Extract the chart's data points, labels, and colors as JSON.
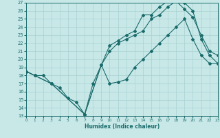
{
  "xlabel": "Humidex (Indice chaleur)",
  "bg_color": "#c8e8e8",
  "grid_color": "#a8d0d0",
  "line_color": "#1a6b6b",
  "xmin": 0,
  "xmax": 23,
  "ymin": 13,
  "ymax": 27,
  "line1_x": [
    0,
    1,
    2,
    3,
    4,
    5,
    6,
    7,
    8,
    9,
    10,
    11,
    12,
    13,
    14,
    15,
    16,
    17,
    18,
    19,
    20,
    21,
    22,
    23
  ],
  "line1_y": [
    18.5,
    18.0,
    18.0,
    17.0,
    16.5,
    15.2,
    14.7,
    13.2,
    17.0,
    19.3,
    17.0,
    17.2,
    17.5,
    19.0,
    20.0,
    21.0,
    22.0,
    23.0,
    24.0,
    25.0,
    22.5,
    20.5,
    19.5,
    19.5
  ],
  "line2_x": [
    0,
    1,
    3,
    7,
    9,
    10,
    11,
    12,
    13,
    14,
    15,
    16,
    17,
    18,
    19,
    20,
    21,
    22,
    23
  ],
  "line2_y": [
    18.5,
    18.0,
    17.0,
    13.2,
    19.3,
    21.7,
    22.3,
    23.0,
    23.5,
    25.5,
    25.5,
    26.5,
    27.2,
    27.2,
    26.2,
    25.2,
    23.0,
    21.0,
    20.5
  ],
  "line3_x": [
    0,
    1,
    3,
    7,
    9,
    10,
    11,
    12,
    13,
    14,
    15,
    16,
    17,
    18,
    19,
    20,
    21,
    22,
    23
  ],
  "line3_y": [
    18.5,
    18.0,
    17.0,
    13.2,
    19.3,
    21.0,
    22.0,
    22.5,
    23.0,
    23.5,
    25.0,
    25.5,
    26.5,
    27.2,
    27.0,
    26.0,
    22.5,
    20.5,
    19.5
  ],
  "yticks": [
    13,
    14,
    15,
    16,
    17,
    18,
    19,
    20,
    21,
    22,
    23,
    24,
    25,
    26,
    27
  ],
  "xticks": [
    0,
    1,
    2,
    3,
    4,
    5,
    6,
    7,
    8,
    9,
    10,
    11,
    12,
    13,
    14,
    15,
    16,
    17,
    18,
    19,
    20,
    21,
    22,
    23
  ]
}
